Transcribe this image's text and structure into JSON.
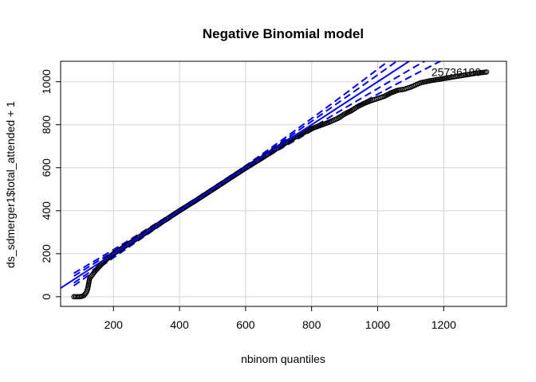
{
  "chart_data": {
    "type": "scatter",
    "title": "Negative Binomial model",
    "xlabel": "nbinom quantiles",
    "ylabel": "ds_sdmerger1$total_attended + 1",
    "xlim": [
      40,
      1390
    ],
    "ylim": [
      -45,
      1095
    ],
    "x_ticks": [
      200,
      400,
      600,
      800,
      1000,
      1200
    ],
    "y_ticks": [
      0,
      200,
      400,
      600,
      800,
      1000
    ],
    "grid": true,
    "colors": {
      "points": "#000000",
      "reference": "#0000ee",
      "envelope": "#0000ee",
      "grid": "#d3d3d3"
    },
    "reference_line": {
      "type": "solid",
      "slope": 1.0,
      "intercept": 0
    },
    "confidence_envelope": {
      "type": "dashed"
    },
    "point_label": {
      "text": "25736180",
      "x": 1330,
      "y": 1045
    },
    "points_curve": [
      [
        80,
        0
      ],
      [
        90,
        0
      ],
      [
        100,
        0
      ],
      [
        110,
        5
      ],
      [
        118,
        20
      ],
      [
        122,
        38
      ],
      [
        128,
        85
      ],
      [
        135,
        100
      ],
      [
        145,
        120
      ],
      [
        160,
        145
      ],
      [
        180,
        175
      ],
      [
        200,
        200
      ],
      [
        250,
        250
      ],
      [
        300,
        300
      ],
      [
        350,
        350
      ],
      [
        400,
        400
      ],
      [
        450,
        448
      ],
      [
        500,
        498
      ],
      [
        550,
        548
      ],
      [
        600,
        598
      ],
      [
        650,
        645
      ],
      [
        700,
        695
      ],
      [
        750,
        742
      ],
      [
        800,
        782
      ],
      [
        850,
        810
      ],
      [
        880,
        830
      ],
      [
        900,
        850
      ],
      [
        920,
        865
      ],
      [
        940,
        885
      ],
      [
        960,
        900
      ],
      [
        980,
        912
      ],
      [
        1000,
        922
      ],
      [
        1020,
        932
      ],
      [
        1040,
        948
      ],
      [
        1060,
        960
      ],
      [
        1080,
        965
      ],
      [
        1100,
        975
      ],
      [
        1130,
        995
      ],
      [
        1160,
        1005
      ],
      [
        1190,
        1012
      ],
      [
        1220,
        1020
      ],
      [
        1260,
        1030
      ],
      [
        1300,
        1040
      ],
      [
        1330,
        1045
      ]
    ]
  }
}
